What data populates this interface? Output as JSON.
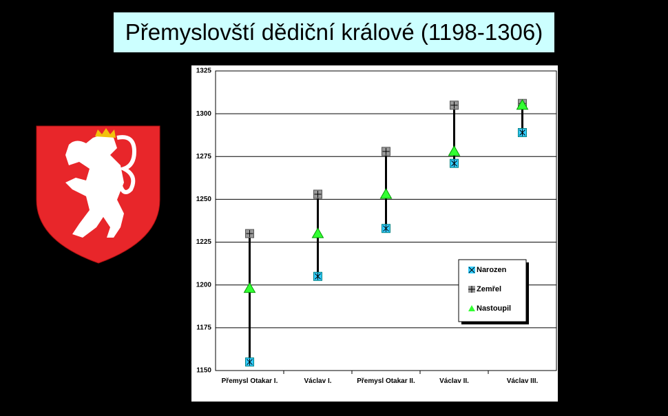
{
  "chart_data": {
    "type": "range-scatter",
    "title": "Přemyslovští dědiční králové (1198-1306)",
    "categories": [
      "Přemysl Otakar I.",
      "Václav I.",
      "Přemysl Otakar II.",
      "Václav II.",
      "Václav III."
    ],
    "series": [
      {
        "name": "Narozen",
        "color": "#33ccff",
        "values": [
          1155,
          1205,
          1233,
          1271,
          1289
        ]
      },
      {
        "name": "Zemřel",
        "color": "#999999",
        "values": [
          1230,
          1253,
          1278,
          1305,
          1306
        ]
      },
      {
        "name": "Nastoupil",
        "color": "#33ff33",
        "values": [
          1198,
          1230,
          1253,
          1278,
          1305
        ]
      }
    ],
    "ylim": [
      1150,
      1325
    ],
    "yticks": [
      1150,
      1175,
      1200,
      1225,
      1250,
      1275,
      1300,
      1325
    ],
    "grid": true
  }
}
